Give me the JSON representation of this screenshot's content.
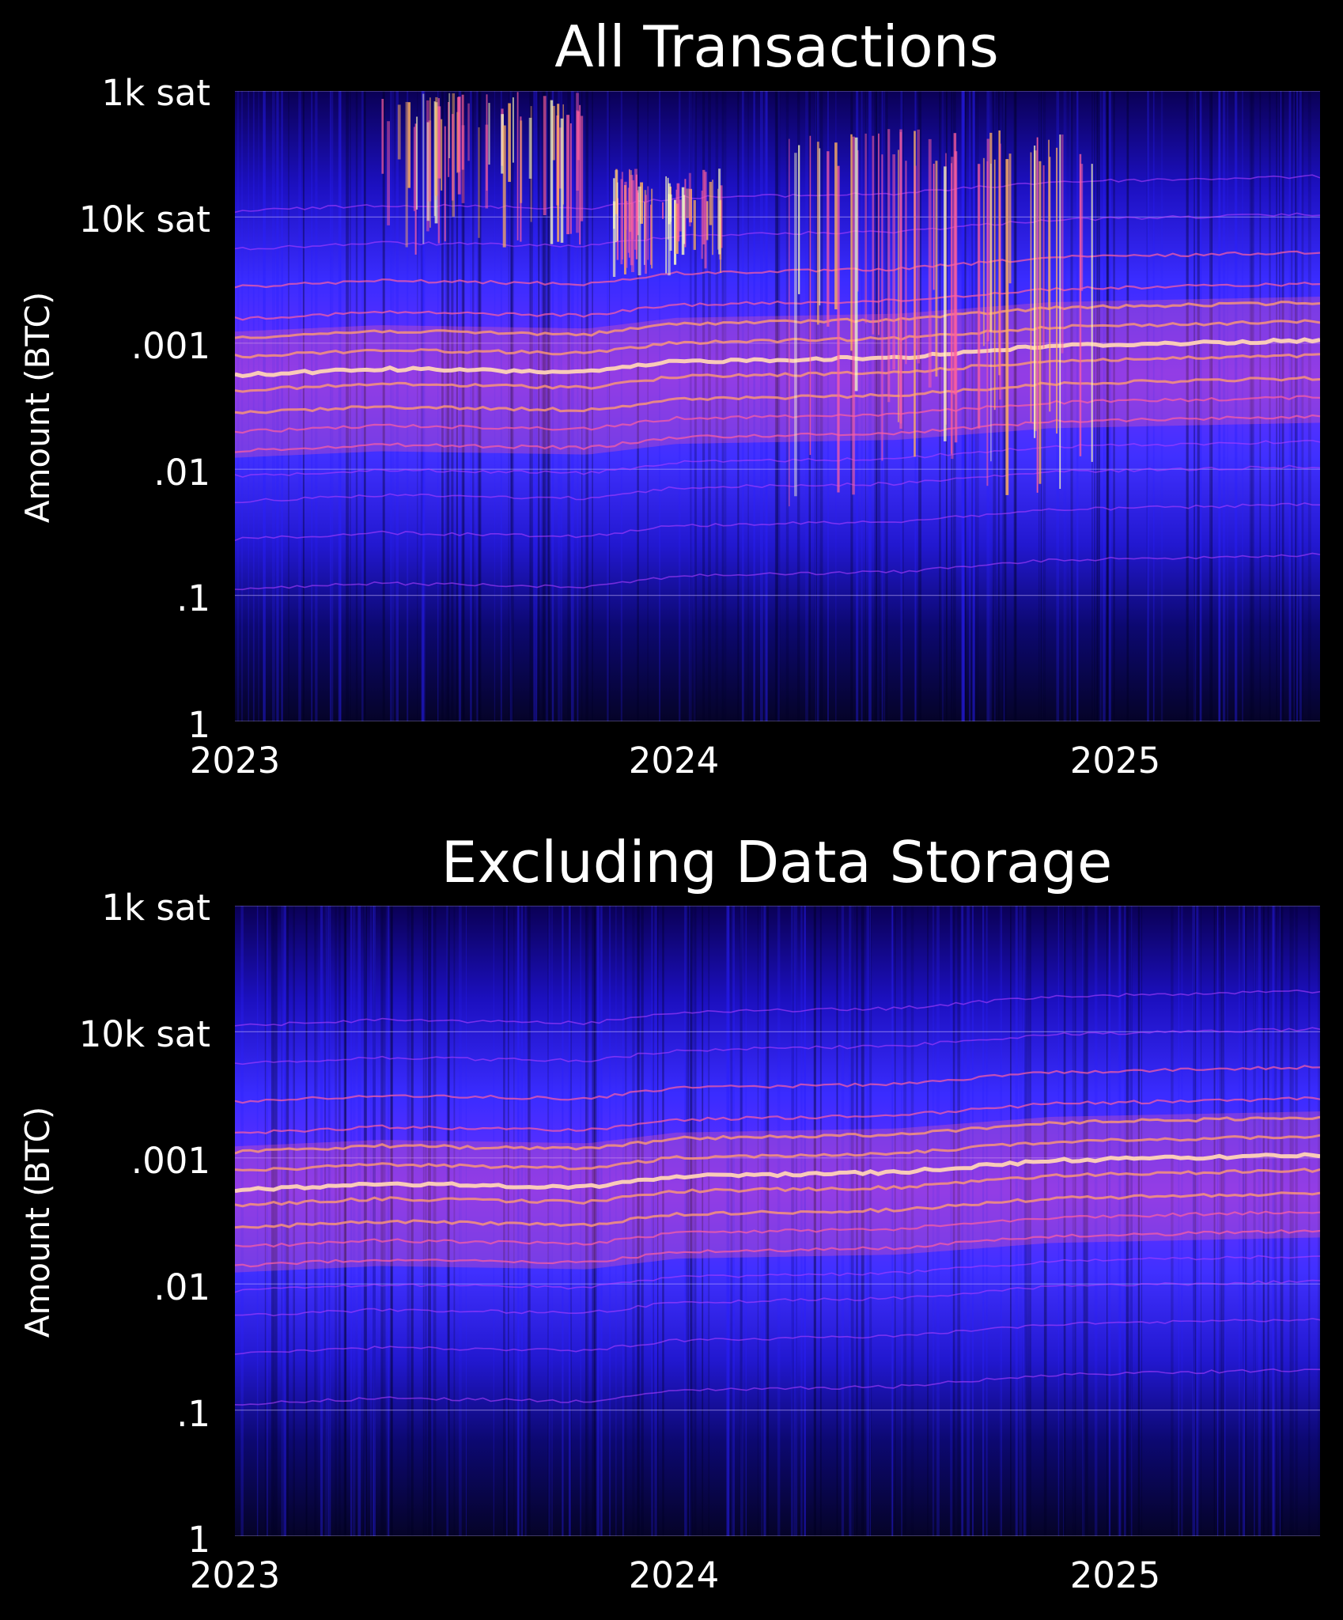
{
  "chart_data": [
    {
      "type": "heatmap",
      "title": "All Transactions",
      "xlabel": "",
      "ylabel": "Amount (BTC)",
      "x_axis": {
        "ticks": [
          "2023",
          "2024",
          "2025"
        ],
        "range": [
          2023.0,
          2025.46
        ]
      },
      "y_axis": {
        "scale": "log",
        "unit": "BTC",
        "ticks": [
          {
            "label": "1k sat",
            "value": 1e-05
          },
          {
            "label": "10k sat",
            "value": 0.0001
          },
          {
            "label": ".001",
            "value": 0.001
          },
          {
            "label": ".01",
            "value": 0.01
          },
          {
            "label": ".1",
            "value": 0.1
          },
          {
            "label": "1",
            "value": 1
          }
        ],
        "range": [
          1e-05,
          1
        ],
        "inverted": true
      },
      "colormap": [
        "#000010",
        "#1a00a0",
        "#3030ff",
        "#b040ff",
        "#ff60a0",
        "#ffb060",
        "#ffffc0"
      ],
      "main_band_btc": [
        {
          "x": 2023.0,
          "y": 0.0018
        },
        {
          "x": 2023.33,
          "y": 0.0016
        },
        {
          "x": 2023.8,
          "y": 0.0017
        },
        {
          "x": 2024.0,
          "y": 0.0014
        },
        {
          "x": 2024.5,
          "y": 0.0013
        },
        {
          "x": 2024.85,
          "y": 0.00105
        },
        {
          "x": 2025.46,
          "y": 0.00095
        }
      ],
      "data_storage_spikes": [
        {
          "x_start": 2023.33,
          "x_end": 2023.8,
          "y_low": 1e-05,
          "y_high": 0.0002
        },
        {
          "x_start": 2023.85,
          "x_end": 2024.1,
          "y_low": 4e-05,
          "y_high": 0.0003
        },
        {
          "x_start": 2024.25,
          "x_end": 2024.95,
          "y_low": 2e-05,
          "y_high": 0.02
        }
      ]
    },
    {
      "type": "heatmap",
      "title": "Excluding Data Storage",
      "xlabel": "",
      "ylabel": "Amount (BTC)",
      "x_axis": {
        "ticks": [
          "2023",
          "2024",
          "2025"
        ],
        "range": [
          2023.0,
          2025.46
        ]
      },
      "y_axis": {
        "scale": "log",
        "unit": "BTC",
        "ticks": [
          {
            "label": "1k sat",
            "value": 1e-05
          },
          {
            "label": "10k sat",
            "value": 0.0001
          },
          {
            "label": ".001",
            "value": 0.001
          },
          {
            "label": ".01",
            "value": 0.01
          },
          {
            "label": ".1",
            "value": 0.1
          },
          {
            "label": "1",
            "value": 1
          }
        ],
        "range": [
          1e-05,
          1
        ],
        "inverted": true
      },
      "colormap": [
        "#000010",
        "#1a00a0",
        "#3030ff",
        "#b040ff",
        "#ff60a0",
        "#ffb060",
        "#ffffc0"
      ],
      "main_band_btc": [
        {
          "x": 2023.0,
          "y": 0.0018
        },
        {
          "x": 2023.33,
          "y": 0.0016
        },
        {
          "x": 2023.8,
          "y": 0.0017
        },
        {
          "x": 2024.0,
          "y": 0.0014
        },
        {
          "x": 2024.5,
          "y": 0.0013
        },
        {
          "x": 2024.85,
          "y": 0.00105
        },
        {
          "x": 2025.46,
          "y": 0.00095
        }
      ],
      "data_storage_spikes": []
    }
  ]
}
